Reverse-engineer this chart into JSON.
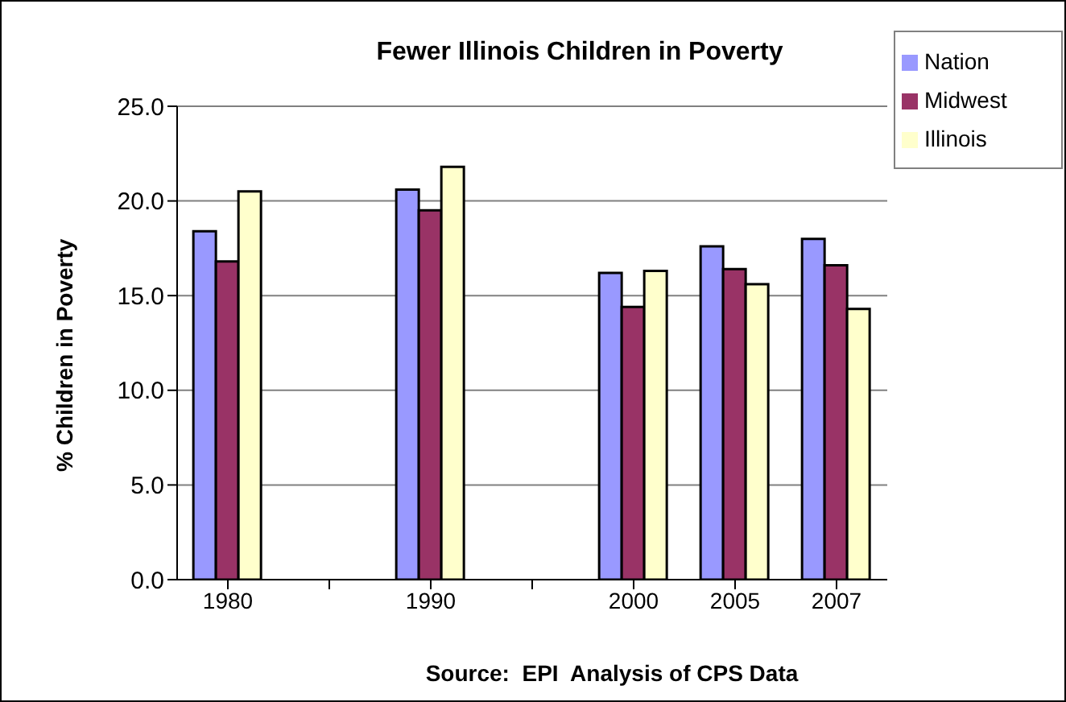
{
  "chart_data": {
    "type": "bar",
    "title": "Fewer Illinois Children in Poverty",
    "ylabel": "% Children in Poverty",
    "annotations": [
      "Source:  EPI  Analysis of CPS Data"
    ],
    "categories": [
      "1980",
      null,
      "1990",
      null,
      "2000",
      "2005",
      "2007"
    ],
    "series": [
      {
        "name": "Nation",
        "color": "#9999ff",
        "values": [
          18.4,
          null,
          20.6,
          null,
          16.2,
          17.6,
          18.0
        ]
      },
      {
        "name": "Midwest",
        "color": "#993366",
        "values": [
          16.8,
          null,
          19.5,
          null,
          14.4,
          16.4,
          16.6
        ]
      },
      {
        "name": "Illinois",
        "color": "#ffffcc",
        "values": [
          20.5,
          null,
          21.8,
          null,
          16.3,
          15.6,
          14.3
        ]
      }
    ],
    "ylim": [
      0,
      25
    ],
    "yticks": [
      {
        "value": 0,
        "label": "0.0"
      },
      {
        "value": 5,
        "label": "5.0"
      },
      {
        "value": 10,
        "label": "10.0"
      },
      {
        "value": 15,
        "label": "15.0"
      },
      {
        "value": 20,
        "label": "20.0"
      },
      {
        "value": 25,
        "label": "25.0"
      }
    ],
    "grid": "y",
    "legend": "top right"
  }
}
